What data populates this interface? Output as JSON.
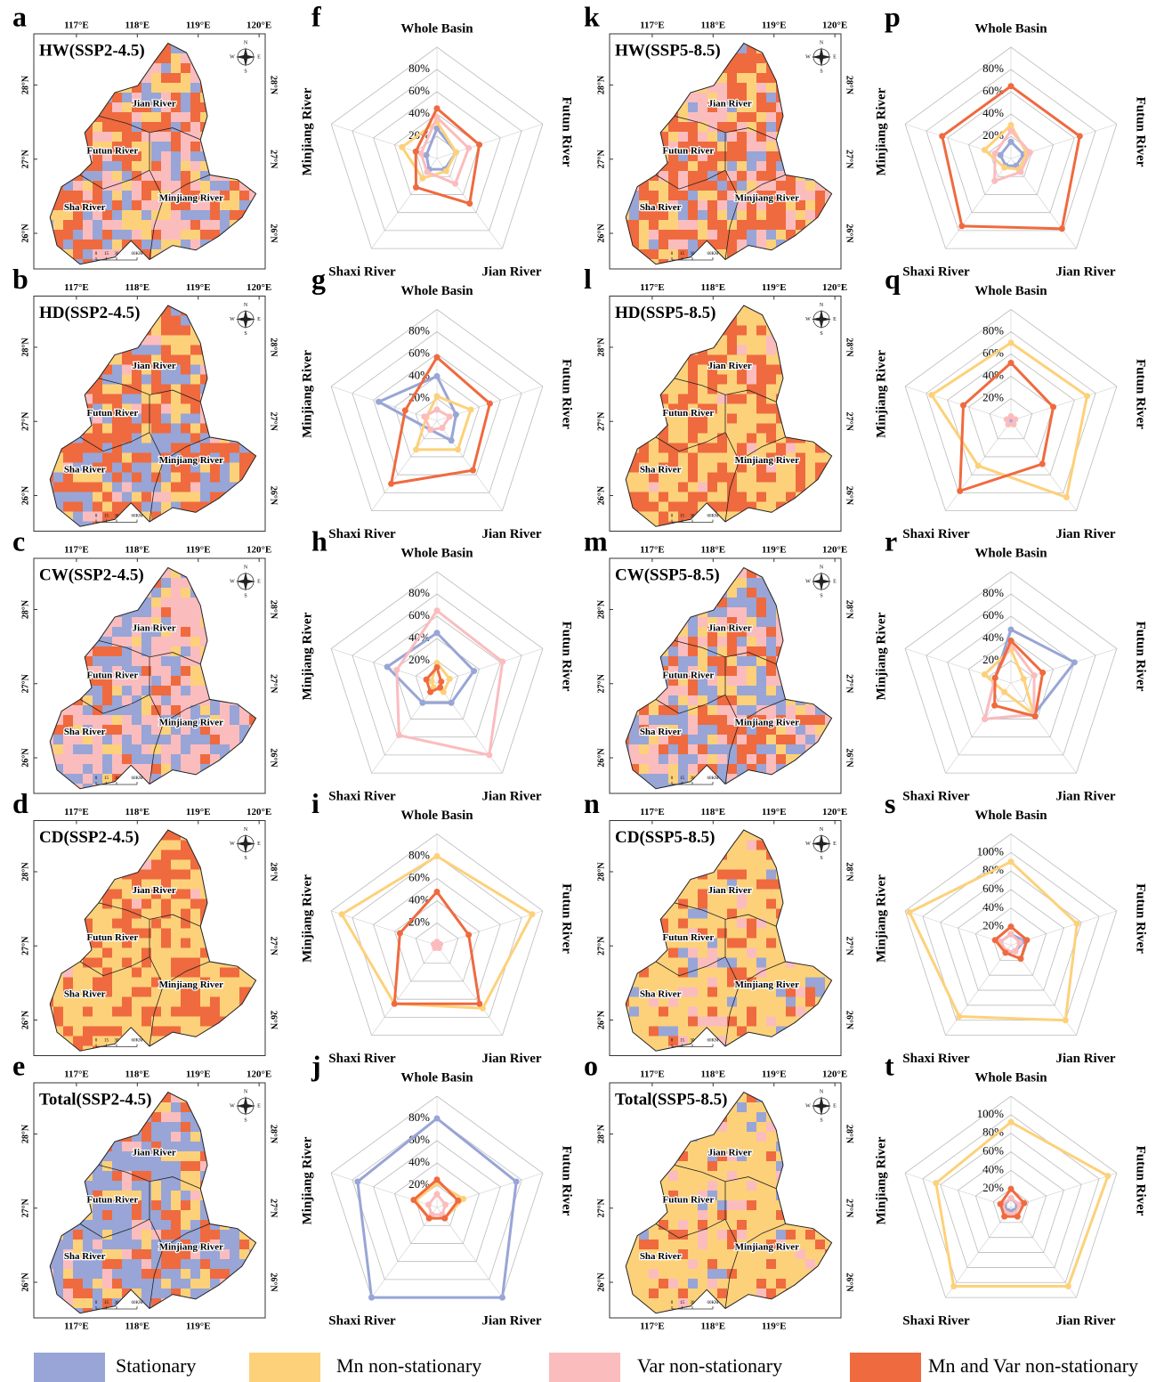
{
  "map_common": {
    "xticks": [
      {
        "value": 117,
        "label": "117°E"
      },
      {
        "value": 118,
        "label": "118°E"
      },
      {
        "value": 119,
        "label": "119°E"
      },
      {
        "value": 120,
        "label": "120°E"
      }
    ],
    "xlim": [
      116.3,
      120.1
    ],
    "yticks": [
      {
        "value": 28,
        "label": "28°N"
      },
      {
        "value": 27,
        "label": "27°N"
      },
      {
        "value": 26,
        "label": "26°N"
      }
    ],
    "ylim": [
      25.52,
      28.69
    ],
    "regions": [
      "Jian River",
      "Futun River",
      "Sha River",
      "Minjiang River"
    ],
    "compass": [
      "N",
      "S",
      "W",
      "E"
    ],
    "scalebar": [
      "0",
      "15",
      "30",
      "60KM"
    ]
  },
  "chart_data": [
    {
      "type": "map",
      "panel": "a",
      "title": "HW(SSP2-4.5)"
    },
    {
      "type": "map",
      "panel": "b",
      "title": "HD(SSP2-4.5)"
    },
    {
      "type": "map",
      "panel": "c",
      "title": "CW(SSP2-4.5)"
    },
    {
      "type": "map",
      "panel": "d",
      "title": "CD(SSP2-4.5)"
    },
    {
      "type": "map",
      "panel": "e",
      "title": "Total(SSP2-4.5)"
    },
    {
      "type": "radar",
      "panel": "f",
      "categories": [
        "Whole Basin",
        "Futun River",
        "Jian River",
        "Shaxi River",
        "Minjiang River"
      ],
      "rlim": [
        0,
        100
      ],
      "rticks": [
        {
          "value": 20,
          "label": "20%"
        },
        {
          "value": 40,
          "label": "40%"
        },
        {
          "value": 60,
          "label": "60%"
        },
        {
          "value": 80,
          "label": "80%"
        }
      ],
      "series": [
        {
          "name": "Stationary",
          "color": "#98a5d6",
          "values": [
            27,
            18,
            12,
            12,
            10
          ]
        },
        {
          "name": "Mn non-stationary",
          "color": "#fdd17a",
          "values": [
            33,
            18,
            14,
            22,
            33
          ]
        },
        {
          "name": "Var non-stationary",
          "color": "#fbbcbe",
          "values": [
            37,
            30,
            28,
            15,
            15
          ]
        },
        {
          "name": "Mn and Var non-stationary",
          "color": "#ef6a3f",
          "values": [
            45,
            40,
            50,
            32,
            20
          ]
        }
      ]
    },
    {
      "type": "radar",
      "panel": "g",
      "categories": [
        "Whole Basin",
        "Futun River",
        "Jian River",
        "Shaxi River",
        "Minjiang River"
      ],
      "rlim": [
        0,
        100
      ],
      "rticks": [
        {
          "value": 20,
          "label": "20%"
        },
        {
          "value": 40,
          "label": "40%"
        },
        {
          "value": 60,
          "label": "60%"
        },
        {
          "value": 80,
          "label": "80%"
        }
      ],
      "series": [
        {
          "name": "Stationary",
          "color": "#98a5d6",
          "values": [
            40,
            18,
            22,
            10,
            55
          ]
        },
        {
          "name": "Mn non-stationary",
          "color": "#fdd17a",
          "values": [
            22,
            32,
            32,
            32,
            10
          ]
        },
        {
          "name": "Var non-stationary",
          "color": "#fbbcbe",
          "values": [
            10,
            12,
            8,
            10,
            12
          ]
        },
        {
          "name": "Mn and Var non-stationary",
          "color": "#ef6a3f",
          "values": [
            57,
            50,
            55,
            70,
            30
          ]
        }
      ]
    },
    {
      "type": "radar",
      "panel": "h",
      "categories": [
        "Whole Basin",
        "Futun River",
        "Jian River",
        "Shaxi River",
        "Minjiang River"
      ],
      "rlim": [
        0,
        100
      ],
      "rticks": [
        {
          "value": 20,
          "label": "20%"
        },
        {
          "value": 40,
          "label": "40%"
        },
        {
          "value": 60,
          "label": "60%"
        },
        {
          "value": 80,
          "label": "80%"
        }
      ],
      "series": [
        {
          "name": "Stationary",
          "color": "#98a5d6",
          "values": [
            45,
            35,
            22,
            22,
            47
          ]
        },
        {
          "name": "Mn non-stationary",
          "color": "#fdd17a",
          "values": [
            18,
            12,
            10,
            5,
            5
          ]
        },
        {
          "name": "Var non-stationary",
          "color": "#fbbcbe",
          "values": [
            65,
            62,
            80,
            58,
            38
          ]
        },
        {
          "name": "Mn and Var non-stationary",
          "color": "#ef6a3f",
          "values": [
            14,
            4,
            5,
            10,
            10
          ]
        }
      ]
    },
    {
      "type": "radar",
      "panel": "i",
      "categories": [
        "Whole Basin",
        "Futun River",
        "Jian River",
        "Shaxi River",
        "Minjiang River"
      ],
      "rlim": [
        0,
        100
      ],
      "rticks": [
        {
          "value": 20,
          "label": "20%"
        },
        {
          "value": 40,
          "label": "40%"
        },
        {
          "value": 60,
          "label": "60%"
        },
        {
          "value": 80,
          "label": "80%"
        }
      ],
      "series": [
        {
          "name": "Stationary",
          "color": "#98a5d6",
          "values": [
            0,
            0,
            0,
            0,
            0
          ]
        },
        {
          "name": "Mn non-stationary",
          "color": "#fdd17a",
          "values": [
            80,
            90,
            70,
            65,
            90
          ]
        },
        {
          "name": "Var non-stationary",
          "color": "#fbbcbe",
          "values": [
            3,
            3,
            3,
            3,
            3
          ]
        },
        {
          "name": "Mn and Var non-stationary",
          "color": "#ef6a3f",
          "values": [
            48,
            30,
            65,
            65,
            35
          ]
        }
      ]
    },
    {
      "type": "radar",
      "panel": "j",
      "categories": [
        "Whole Basin",
        "Futun River",
        "Jian River",
        "Shaxi River",
        "Minjiang River"
      ],
      "rlim": [
        0,
        100
      ],
      "rticks": [
        {
          "value": 20,
          "label": "20%"
        },
        {
          "value": 40,
          "label": "40%"
        },
        {
          "value": 60,
          "label": "60%"
        },
        {
          "value": 80,
          "label": "80%"
        }
      ],
      "series": [
        {
          "name": "Stationary",
          "color": "#98a5d6",
          "values": [
            80,
            75,
            100,
            100,
            75
          ]
        },
        {
          "name": "Mn non-stationary",
          "color": "#fdd17a",
          "values": [
            22,
            25,
            12,
            12,
            20
          ]
        },
        {
          "name": "Var non-stationary",
          "color": "#fbbcbe",
          "values": [
            12,
            8,
            8,
            8,
            8
          ]
        },
        {
          "name": "Mn and Var non-stationary",
          "color": "#ef6a3f",
          "values": [
            25,
            20,
            12,
            12,
            22
          ]
        }
      ]
    },
    {
      "type": "map",
      "panel": "k",
      "title": "HW(SSP5-8.5)"
    },
    {
      "type": "map",
      "panel": "l",
      "title": "HD(SSP5-8.5)"
    },
    {
      "type": "map",
      "panel": "m",
      "title": "CW(SSP5-8.5)"
    },
    {
      "type": "map",
      "panel": "n",
      "title": "CD(SSP5-8.5)"
    },
    {
      "type": "map",
      "panel": "o",
      "title": "Total(SSP5-8.5)"
    },
    {
      "type": "radar",
      "panel": "p",
      "categories": [
        "Whole Basin",
        "Futun River",
        "Jian River",
        "Shaxi River",
        "Minjiang River"
      ],
      "rlim": [
        0,
        100
      ],
      "rticks": [
        {
          "value": 20,
          "label": "20%"
        },
        {
          "value": 40,
          "label": "40%"
        },
        {
          "value": 60,
          "label": "60%"
        },
        {
          "value": 80,
          "label": "80%"
        }
      ],
      "series": [
        {
          "name": "Stationary",
          "color": "#98a5d6",
          "values": [
            15,
            12,
            8,
            8,
            10
          ]
        },
        {
          "name": "Mn non-stationary",
          "color": "#fdd17a",
          "values": [
            30,
            15,
            12,
            10,
            25
          ]
        },
        {
          "name": "Var non-stationary",
          "color": "#fbbcbe",
          "values": [
            25,
            18,
            15,
            25,
            15
          ]
        },
        {
          "name": "Mn and Var non-stationary",
          "color": "#ef6a3f",
          "values": [
            65,
            65,
            78,
            75,
            65
          ]
        }
      ]
    },
    {
      "type": "radar",
      "panel": "q",
      "categories": [
        "Whole Basin",
        "Futun River",
        "Jian River",
        "Shaxi River",
        "Minjiang River"
      ],
      "rlim": [
        0,
        100
      ],
      "rticks": [
        {
          "value": 20,
          "label": "20%"
        },
        {
          "value": 40,
          "label": "40%"
        },
        {
          "value": 60,
          "label": "60%"
        },
        {
          "value": 80,
          "label": "80%"
        }
      ],
      "series": [
        {
          "name": "Stationary",
          "color": "#98a5d6",
          "values": [
            0,
            0,
            0,
            0,
            0
          ]
        },
        {
          "name": "Mn non-stationary",
          "color": "#fdd17a",
          "values": [
            70,
            72,
            85,
            50,
            75
          ]
        },
        {
          "name": "Var non-stationary",
          "color": "#fbbcbe",
          "values": [
            4,
            4,
            4,
            4,
            4
          ]
        },
        {
          "name": "Mn and Var non-stationary",
          "color": "#ef6a3f",
          "values": [
            52,
            40,
            48,
            78,
            45
          ]
        }
      ]
    },
    {
      "type": "radar",
      "panel": "r",
      "categories": [
        "Whole Basin",
        "Futun River",
        "Jian River",
        "Shaxi River",
        "Minjiang River"
      ],
      "rlim": [
        0,
        100
      ],
      "rticks": [
        {
          "value": 20,
          "label": "20%"
        },
        {
          "value": 40,
          "label": "40%"
        },
        {
          "value": 60,
          "label": "60%"
        },
        {
          "value": 80,
          "label": "80%"
        }
      ],
      "series": [
        {
          "name": "Stationary",
          "color": "#98a5d6",
          "values": [
            48,
            60,
            35,
            40,
            15
          ]
        },
        {
          "name": "Mn non-stationary",
          "color": "#fdd17a",
          "values": [
            30,
            12,
            35,
            10,
            25
          ]
        },
        {
          "name": "Var non-stationary",
          "color": "#fbbcbe",
          "values": [
            35,
            22,
            35,
            40,
            15
          ]
        },
        {
          "name": "Mn and Var non-stationary",
          "color": "#ef6a3f",
          "values": [
            38,
            30,
            37,
            25,
            15
          ]
        }
      ]
    },
    {
      "type": "radar",
      "panel": "s",
      "categories": [
        "Whole Basin",
        "Futun River",
        "Jian River",
        "Shaxi River",
        "Minjiang River"
      ],
      "rlim": [
        0,
        120
      ],
      "rticks": [
        {
          "value": 20,
          "label": "20%"
        },
        {
          "value": 40,
          "label": "40%"
        },
        {
          "value": 60,
          "label": "60%"
        },
        {
          "value": 80,
          "label": "80%"
        },
        {
          "value": 100,
          "label": "100%"
        }
      ],
      "series": [
        {
          "name": "Stationary",
          "color": "#98a5d6",
          "values": [
            12,
            15,
            8,
            10,
            12
          ]
        },
        {
          "name": "Mn non-stationary",
          "color": "#fdd17a",
          "values": [
            90,
            75,
            100,
            95,
            115
          ]
        },
        {
          "name": "Var non-stationary",
          "color": "#fbbcbe",
          "values": [
            12,
            10,
            8,
            8,
            12
          ]
        },
        {
          "name": "Mn and Var non-stationary",
          "color": "#ef6a3f",
          "values": [
            20,
            18,
            18,
            10,
            18
          ]
        }
      ]
    },
    {
      "type": "radar",
      "panel": "t",
      "categories": [
        "Whole Basin",
        "Futun River",
        "Jian River",
        "Shaxi River",
        "Minjiang River"
      ],
      "rlim": [
        0,
        120
      ],
      "rticks": [
        {
          "value": 20,
          "label": "20%"
        },
        {
          "value": 40,
          "label": "40%"
        },
        {
          "value": 60,
          "label": "60%"
        },
        {
          "value": 80,
          "label": "80%"
        },
        {
          "value": 100,
          "label": "100%"
        }
      ],
      "series": [
        {
          "name": "Stationary",
          "color": "#98a5d6",
          "values": [
            10,
            8,
            5,
            5,
            8
          ]
        },
        {
          "name": "Mn non-stationary",
          "color": "#fdd17a",
          "values": [
            92,
            110,
            105,
            105,
            85
          ]
        },
        {
          "name": "Var non-stationary",
          "color": "#fbbcbe",
          "values": [
            10,
            10,
            8,
            8,
            10
          ]
        },
        {
          "name": "Mn and Var non-stationary",
          "color": "#ef6a3f",
          "values": [
            20,
            15,
            12,
            12,
            12
          ]
        }
      ]
    }
  ]
}
